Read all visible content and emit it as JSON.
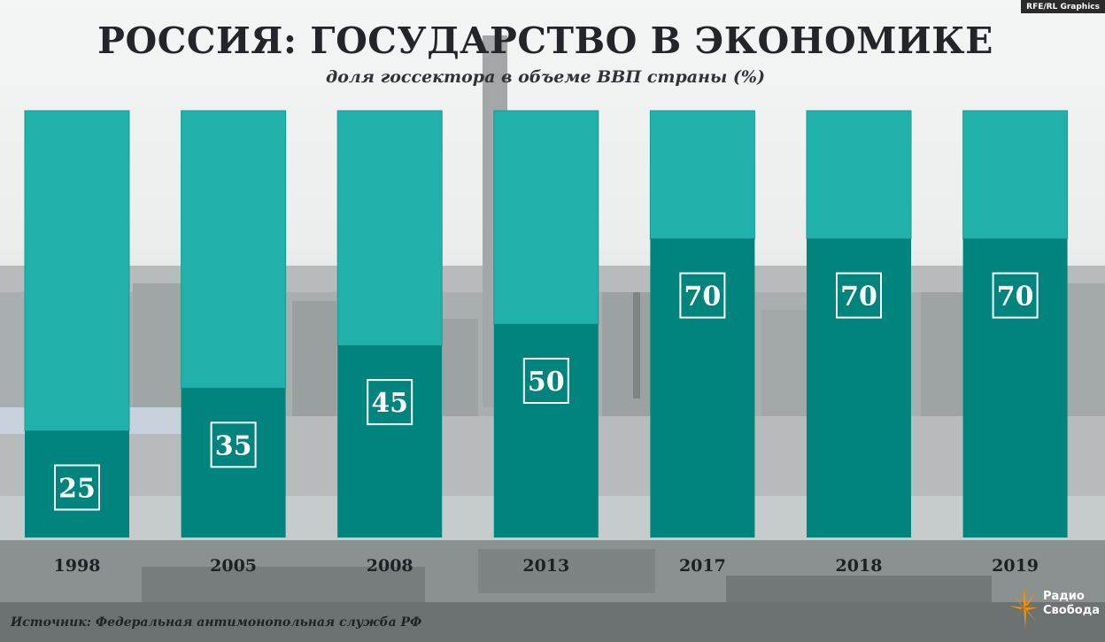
{
  "credit": "RFE/RL Graphics",
  "title": "РОССИЯ: ГОСУДАРСТВО В ЭКОНОМИКЕ",
  "subtitle": "доля госсектора в объеме ВВП страны (%)",
  "source": "Источник: Федеральная антимонопольная служба РФ",
  "logo": {
    "line1": "Радио",
    "line2": "Свобода",
    "icon": "sun-flare-icon",
    "color": "#f39200"
  },
  "colors": {
    "state_share": "#00847d",
    "remainder": "#20b2aa",
    "label_box": "#ffffff"
  },
  "chart_data": {
    "type": "bar",
    "stacked": true,
    "categories": [
      "1998",
      "2005",
      "2008",
      "2013",
      "2017",
      "2018",
      "2019"
    ],
    "values": [
      25,
      35,
      45,
      50,
      70,
      70,
      70
    ],
    "ylim": [
      0,
      100
    ],
    "grid": false,
    "legend": "none",
    "data_labels": [
      "25",
      "35",
      "45",
      "50",
      "70",
      "70",
      "70"
    ]
  }
}
